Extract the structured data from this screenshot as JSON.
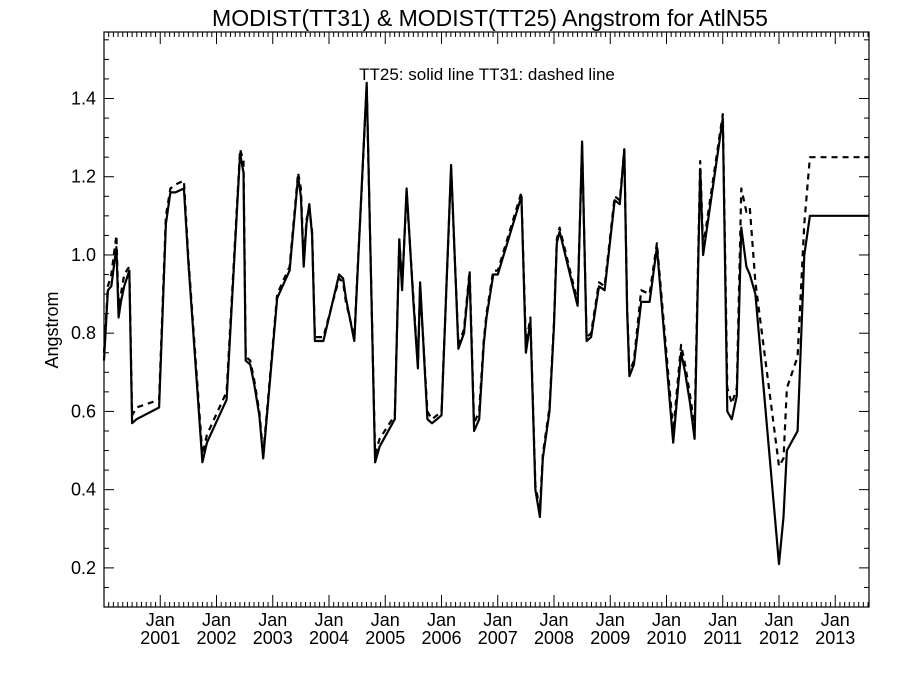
{
  "chart_data": {
    "type": "line",
    "title": "MODIST(TT31) & MODIST(TT25)  Angstrom for AtlN55",
    "annotation": "TT25: solid line   TT31: dashed line",
    "xlabel": "",
    "ylabel": "Angstrom",
    "xlim": [
      2000.0,
      2013.6
    ],
    "ylim": [
      0.1,
      1.57
    ],
    "yticks": [
      0.2,
      0.4,
      0.6,
      0.8,
      1.0,
      1.2,
      1.4
    ],
    "ytick_labels": [
      "0.2",
      "0.4",
      "0.6",
      "0.8",
      "1.0",
      "1.2",
      "1.4"
    ],
    "xticks": [
      {
        "month": "Jan",
        "year": "2001",
        "x": 2001
      },
      {
        "month": "Jan",
        "year": "2002",
        "x": 2002
      },
      {
        "month": "Jan",
        "year": "2003",
        "x": 2003
      },
      {
        "month": "Jan",
        "year": "2004",
        "x": 2004
      },
      {
        "month": "Jan",
        "year": "2005",
        "x": 2005
      },
      {
        "month": "Jan",
        "year": "2006",
        "x": 2006
      },
      {
        "month": "Jan",
        "year": "2007",
        "x": 2007
      },
      {
        "month": "Jan",
        "year": "2008",
        "x": 2008
      },
      {
        "month": "Jan",
        "year": "2009",
        "x": 2009
      },
      {
        "month": "Jan",
        "year": "2010",
        "x": 2010
      },
      {
        "month": "Jan",
        "year": "2011",
        "x": 2011
      },
      {
        "month": "Jan",
        "year": "2012",
        "x": 2012
      },
      {
        "month": "Jan",
        "year": "2013",
        "x": 2013
      }
    ],
    "grid": false,
    "series": [
      {
        "name": "TT25",
        "style": "solid",
        "color": "#000000",
        "x": [
          2000.0,
          2000.07,
          2000.13,
          2000.22,
          2000.26,
          2000.3,
          2000.36,
          2000.45,
          2000.5,
          2000.58,
          2000.98,
          2001.1,
          2001.18,
          2001.27,
          2001.42,
          2001.5,
          2001.75,
          2001.83,
          2002.18,
          2002.42,
          2002.48,
          2002.52,
          2002.6,
          2002.67,
          2002.76,
          2002.83,
          2003.08,
          2003.3,
          2003.45,
          2003.5,
          2003.55,
          2003.6,
          2003.65,
          2003.7,
          2003.75,
          2003.9,
          2004.18,
          2004.25,
          2004.3,
          2004.45,
          2004.67,
          2004.82,
          2004.9,
          2005.17,
          2005.25,
          2005.3,
          2005.38,
          2005.5,
          2005.58,
          2005.62,
          2005.75,
          2005.83,
          2005.92,
          2006.0,
          2006.17,
          2006.3,
          2006.4,
          2006.5,
          2006.58,
          2006.67,
          2006.75,
          2006.8,
          2006.92,
          2007.0,
          2007.42,
          2007.5,
          2007.58,
          2007.67,
          2007.75,
          2007.8,
          2007.92,
          2008.0,
          2008.05,
          2008.1,
          2008.42,
          2008.5,
          2008.58,
          2008.66,
          2008.8,
          2008.9,
          2009.08,
          2009.17,
          2009.25,
          2009.3,
          2009.34,
          2009.42,
          2009.55,
          2009.7,
          2009.83,
          2010.12,
          2010.26,
          2010.33,
          2010.42,
          2010.5,
          2010.6,
          2010.65,
          2011.0,
          2011.08,
          2011.16,
          2011.25,
          2011.33,
          2011.42,
          2011.48,
          2011.58,
          2012.0,
          2012.08,
          2012.14,
          2012.33,
          2012.45,
          2012.55,
          2012.67,
          2012.8,
          2013.0,
          2013.12,
          2013.18,
          2013.45,
          2013.55,
          2013.6
        ],
        "y": [
          0.73,
          0.91,
          0.92,
          1.02,
          0.84,
          0.88,
          0.92,
          0.96,
          0.57,
          0.58,
          0.61,
          1.08,
          1.16,
          1.16,
          1.17,
          0.98,
          0.47,
          0.52,
          0.63,
          1.26,
          1.21,
          0.73,
          0.72,
          0.67,
          0.59,
          0.48,
          0.89,
          0.96,
          1.2,
          1.15,
          0.97,
          1.08,
          1.13,
          1.05,
          0.78,
          0.78,
          0.95,
          0.94,
          0.89,
          0.78,
          1.44,
          0.47,
          0.51,
          0.58,
          1.04,
          0.91,
          1.17,
          0.88,
          0.71,
          0.93,
          0.58,
          0.57,
          0.58,
          0.59,
          1.23,
          0.76,
          0.8,
          0.95,
          0.55,
          0.58,
          0.77,
          0.84,
          0.95,
          0.95,
          1.15,
          0.75,
          0.83,
          0.4,
          0.33,
          0.48,
          0.6,
          0.82,
          1.03,
          1.06,
          0.87,
          1.29,
          0.78,
          0.79,
          0.92,
          0.91,
          1.14,
          1.13,
          1.27,
          0.86,
          0.69,
          0.72,
          0.88,
          0.88,
          1.02,
          0.52,
          0.75,
          0.7,
          0.62,
          0.53,
          1.22,
          1.0,
          1.35,
          0.6,
          0.58,
          0.64,
          1.07,
          0.97,
          0.95,
          0.9,
          0.21,
          0.33,
          0.5,
          0.55,
          1.0,
          1.1,
          1.1,
          1.1,
          1.1,
          1.1,
          1.1,
          1.1,
          1.1,
          1.1
        ],
        "note": "last samples repeat; line ends near 1.10 at right edge"
      },
      {
        "name": "TT31",
        "style": "dashed",
        "color": "#000000",
        "x": [
          2000.0,
          2000.07,
          2000.13,
          2000.22,
          2000.26,
          2000.3,
          2000.36,
          2000.45,
          2000.5,
          2000.58,
          2000.98,
          2001.1,
          2001.18,
          2001.27,
          2001.42,
          2001.5,
          2001.75,
          2001.83,
          2002.18,
          2002.42,
          2002.48,
          2002.52,
          2002.6,
          2002.67,
          2002.76,
          2002.83,
          2003.08,
          2003.3,
          2003.45,
          2003.5,
          2003.55,
          2003.6,
          2003.65,
          2003.7,
          2003.75,
          2003.9,
          2004.18,
          2004.25,
          2004.3,
          2004.45,
          2004.67,
          2004.82,
          2004.9,
          2005.17,
          2005.25,
          2005.3,
          2005.38,
          2005.5,
          2005.58,
          2005.62,
          2005.75,
          2005.83,
          2005.92,
          2006.0,
          2006.17,
          2006.3,
          2006.4,
          2006.5,
          2006.58,
          2006.67,
          2006.75,
          2006.8,
          2006.92,
          2007.0,
          2007.42,
          2007.5,
          2007.58,
          2007.67,
          2007.75,
          2007.8,
          2007.92,
          2008.0,
          2008.05,
          2008.1,
          2008.42,
          2008.5,
          2008.58,
          2008.66,
          2008.8,
          2008.9,
          2009.08,
          2009.17,
          2009.25,
          2009.3,
          2009.34,
          2009.42,
          2009.55,
          2009.7,
          2009.83,
          2010.12,
          2010.26,
          2010.33,
          2010.42,
          2010.5,
          2010.6,
          2010.65,
          2011.0,
          2011.08,
          2011.16,
          2011.25,
          2011.33,
          2011.42,
          2011.48,
          2011.58,
          2012.0,
          2012.08,
          2012.14,
          2012.33,
          2012.45,
          2012.55,
          2012.67,
          2012.8,
          2013.0,
          2013.12,
          2013.18,
          2013.45,
          2013.55,
          2013.6
        ],
        "y": [
          0.75,
          0.92,
          0.95,
          1.05,
          0.86,
          0.9,
          0.95,
          0.97,
          0.59,
          0.61,
          0.63,
          1.1,
          1.17,
          1.18,
          1.19,
          0.99,
          0.49,
          0.54,
          0.65,
          1.27,
          1.24,
          0.74,
          0.73,
          0.68,
          0.6,
          0.49,
          0.9,
          0.97,
          1.21,
          1.17,
          0.98,
          1.09,
          1.12,
          1.06,
          0.79,
          0.79,
          0.94,
          0.93,
          0.88,
          0.79,
          1.43,
          0.49,
          0.53,
          0.59,
          1.04,
          0.92,
          1.16,
          0.89,
          0.72,
          0.92,
          0.6,
          0.58,
          0.59,
          0.6,
          1.22,
          0.77,
          0.81,
          0.96,
          0.57,
          0.6,
          0.78,
          0.85,
          0.96,
          0.96,
          1.16,
          0.77,
          0.84,
          0.41,
          0.35,
          0.49,
          0.61,
          0.83,
          1.04,
          1.07,
          0.88,
          1.28,
          0.79,
          0.8,
          0.93,
          0.92,
          1.15,
          1.14,
          1.27,
          0.87,
          0.7,
          0.73,
          0.91,
          0.9,
          1.03,
          0.55,
          0.77,
          0.72,
          0.64,
          0.56,
          1.24,
          1.02,
          1.36,
          0.66,
          0.62,
          0.66,
          1.17,
          1.11,
          1.12,
          0.93,
          0.46,
          0.48,
          0.66,
          0.74,
          1.08,
          1.25,
          1.25,
          1.25,
          1.25,
          1.25,
          1.25,
          1.25,
          1.25,
          1.25
        ],
        "note": "last samples repeat; dashed line ends near 1.25 at right edge"
      }
    ]
  }
}
